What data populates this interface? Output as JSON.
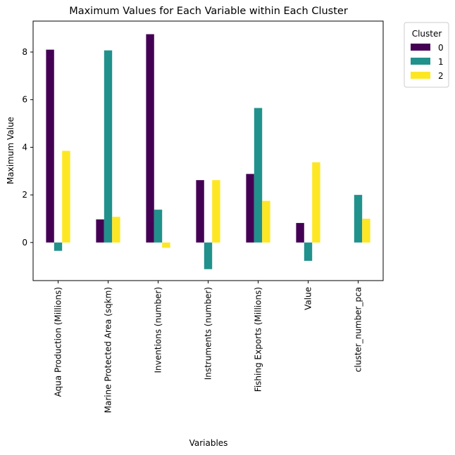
{
  "chart_data": {
    "type": "bar",
    "title": "Maximum Values for Each Variable within Each Cluster",
    "xlabel": "Variables",
    "ylabel": "Maximum Value",
    "categories": [
      "Aqua Production (Millions)",
      "Marine Protected Area (sqkm)",
      "Inventions (number)",
      "Instruments (number)",
      "Fishing Exports (Millions)",
      "Value",
      "cluster_number_pca"
    ],
    "series": [
      {
        "name": "0",
        "color": "#440154",
        "values": [
          8.1,
          0.97,
          8.75,
          2.62,
          2.88,
          0.82,
          0.0
        ]
      },
      {
        "name": "1",
        "color": "#21918c",
        "values": [
          -0.35,
          8.07,
          1.38,
          -1.12,
          5.65,
          -0.77,
          2.0
        ]
      },
      {
        "name": "2",
        "color": "#fde725",
        "values": [
          3.85,
          1.08,
          -0.22,
          2.62,
          1.75,
          3.37,
          1.0
        ]
      }
    ],
    "ylim": [
      -1.6,
      9.3
    ],
    "yticks": [
      0,
      2,
      4,
      6,
      8
    ],
    "grid": false,
    "legend": {
      "title": "Cluster",
      "placement": "outside-top-right"
    }
  }
}
